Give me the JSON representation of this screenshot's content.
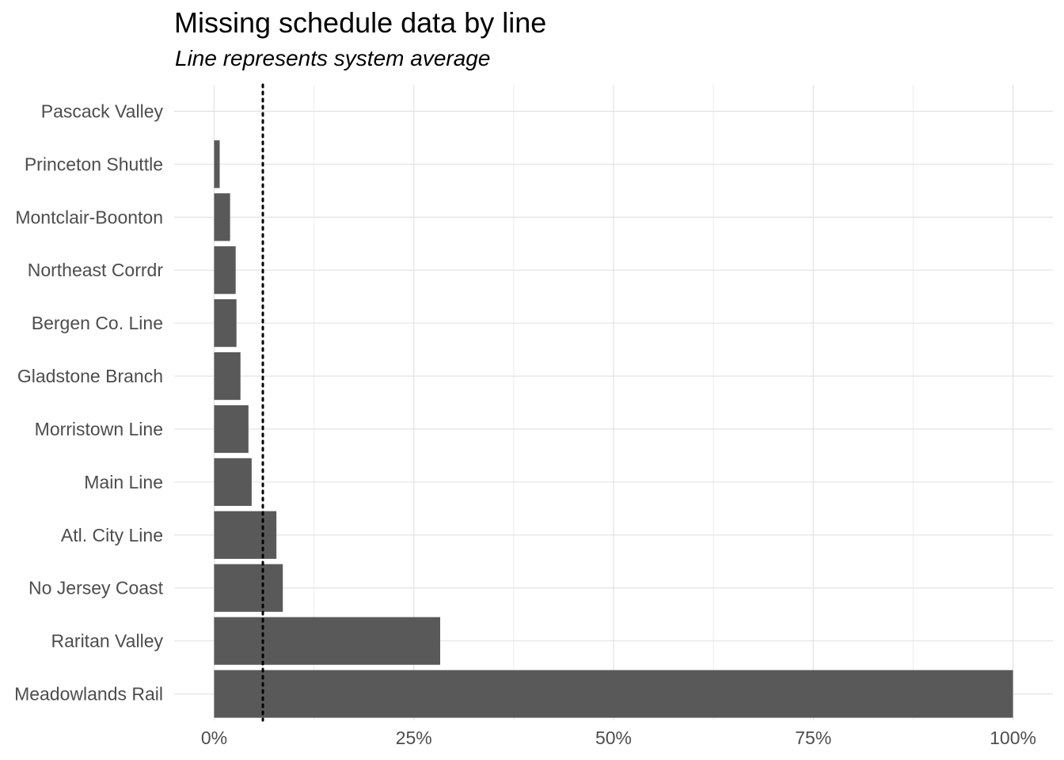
{
  "chart_data": {
    "type": "bar",
    "orientation": "horizontal",
    "title": "Missing schedule data by line",
    "subtitle": "Line represents system average",
    "xlabel": "",
    "ylabel": "",
    "categories": [
      "Pascack Valley",
      "Princeton Shuttle",
      "Montclair-Boonton",
      "Northeast Corrdr",
      "Bergen Co. Line ",
      "Gladstone Branch",
      "Morristown Line",
      "Main Line",
      "Atl. City Line",
      "No Jersey Coast",
      "Raritan Valley",
      "Meadowlands Rail"
    ],
    "values": [
      0,
      0.7,
      2.0,
      2.7,
      2.8,
      3.3,
      4.3,
      4.7,
      7.8,
      8.6,
      28.3,
      100
    ],
    "reference_line": {
      "value": 6.1,
      "style": "dotted",
      "label": "system average"
    },
    "xlim": [
      -5,
      105
    ],
    "x_ticks": [
      0,
      25,
      50,
      75,
      100
    ],
    "x_tick_labels": [
      "0%",
      "25%",
      "50%",
      "75%",
      "100%"
    ],
    "grid": true,
    "legend": "none",
    "colors": {
      "bar": "#595959",
      "grid": "#e0e0e0",
      "label": "#4d4d4d",
      "ref_line": "#000000"
    }
  }
}
